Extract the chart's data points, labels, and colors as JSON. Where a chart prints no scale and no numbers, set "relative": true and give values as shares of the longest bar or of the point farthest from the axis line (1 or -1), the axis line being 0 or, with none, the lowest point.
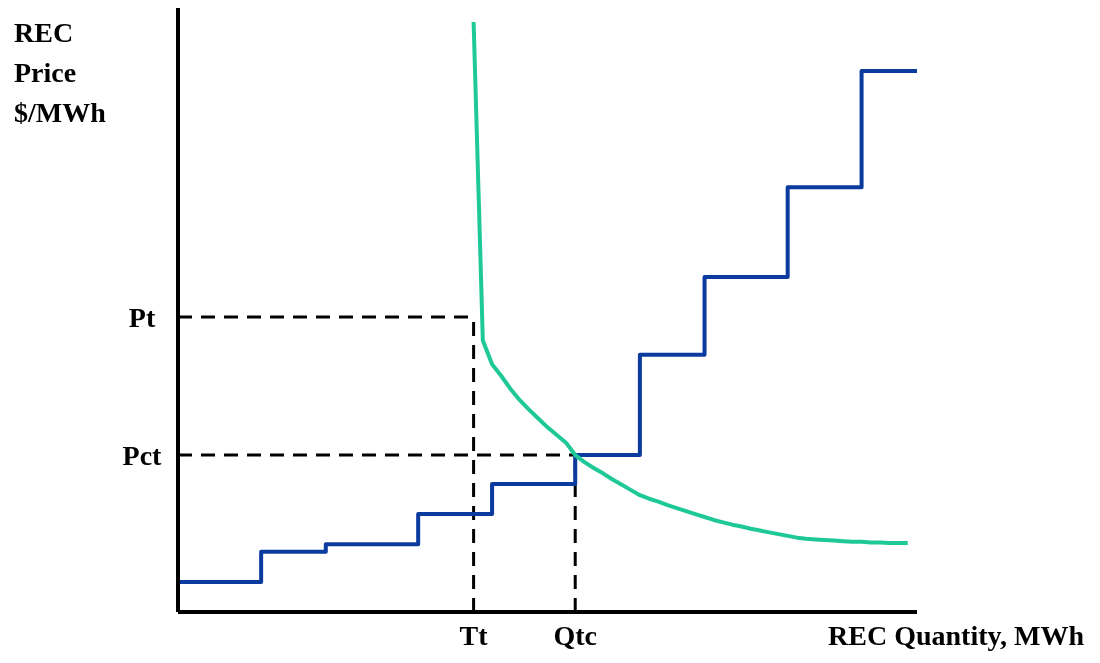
{
  "chart_data": {
    "type": "line",
    "relative": true,
    "xlabel": "REC Quantity, MWh",
    "ylabel": "REC Price $/MWh",
    "categories": [
      null,
      null,
      null,
      null,
      null,
      null,
      null,
      null,
      null,
      null,
      null,
      null,
      null,
      null,
      null,
      null,
      null,
      null,
      null,
      null,
      null,
      null,
      null,
      null,
      null,
      null,
      null,
      null,
      null,
      null,
      null,
      null,
      "Tt",
      null,
      null,
      null,
      null,
      null,
      null,
      null,
      null,
      null,
      null,
      "Qtc",
      null,
      null,
      null,
      null,
      null,
      null,
      null,
      null,
      null,
      null,
      null,
      null,
      null,
      null,
      null,
      null,
      null,
      null,
      null,
      null,
      null,
      null,
      null,
      null,
      null,
      null,
      null,
      null,
      null,
      null,
      null,
      null,
      null,
      null,
      null,
      null,
      null
    ],
    "series": [
      {
        "type": "step",
        "color": "#0b3b9e",
        "values": [
          0.051,
          0.051,
          0.051,
          0.051,
          0.051,
          0.051,
          0.051,
          0.051,
          0.051,
          0.102,
          0.102,
          0.102,
          0.102,
          0.102,
          0.102,
          0.102,
          0.115,
          0.115,
          0.115,
          0.115,
          0.115,
          0.115,
          0.115,
          0.115,
          0.115,
          0.115,
          0.166,
          0.166,
          0.166,
          0.166,
          0.166,
          0.166,
          0.166,
          0.166,
          0.217,
          0.217,
          0.217,
          0.217,
          0.217,
          0.217,
          0.217,
          0.217,
          0.217,
          0.266,
          0.266,
          0.266,
          0.266,
          0.266,
          0.266,
          0.266,
          0.436,
          0.436,
          0.436,
          0.436,
          0.436,
          0.436,
          0.436,
          0.568,
          0.568,
          0.568,
          0.568,
          0.568,
          0.568,
          0.568,
          0.568,
          0.568,
          0.72,
          0.72,
          0.72,
          0.72,
          0.72,
          0.72,
          0.72,
          0.72,
          0.917,
          0.917,
          0.917,
          0.917,
          0.917,
          0.917,
          0.917
        ]
      },
      {
        "color": "#1ec997",
        "values": [
          null,
          null,
          null,
          null,
          null,
          null,
          null,
          null,
          null,
          null,
          null,
          null,
          null,
          null,
          null,
          null,
          null,
          null,
          null,
          null,
          null,
          null,
          null,
          null,
          null,
          null,
          null,
          null,
          null,
          null,
          null,
          null,
          1.0,
          0.46,
          0.42,
          0.4,
          0.378,
          0.359,
          0.343,
          0.328,
          0.313,
          0.3,
          0.287,
          0.266,
          0.254,
          0.244,
          0.235,
          0.225,
          0.216,
          0.207,
          0.198,
          0.192,
          0.187,
          0.181,
          0.176,
          0.171,
          0.166,
          0.161,
          0.156,
          0.152,
          0.148,
          0.145,
          0.141,
          0.138,
          0.135,
          0.132,
          0.129,
          0.126,
          0.124,
          0.123,
          0.122,
          0.121,
          0.12,
          0.119,
          0.119,
          0.118,
          0.118,
          0.117,
          0.117,
          0.117,
          null
        ]
      }
    ],
    "ref_lines": [
      {
        "axis": "y",
        "value": 0.5,
        "label": "Pt",
        "color": "#000000",
        "line_style": "dashed"
      },
      {
        "axis": "y",
        "value": 0.266,
        "label": "Pct",
        "color": "#000000",
        "line_style": "dashed"
      },
      {
        "axis": "x",
        "value": "Tt",
        "color": "#000000",
        "line_style": "dashed"
      },
      {
        "axis": "x",
        "value": "Qtc",
        "color": "#000000",
        "line_style": "dashed"
      }
    ]
  }
}
